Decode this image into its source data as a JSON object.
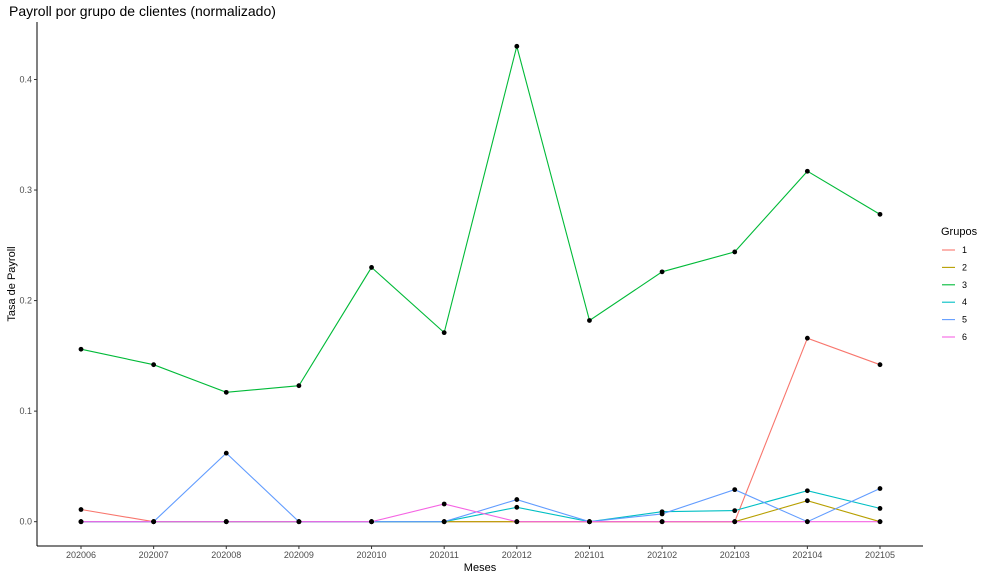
{
  "chart_data": {
    "type": "line",
    "title": "Payroll por grupo de clientes (normalizado)",
    "xlabel": "Meses",
    "ylabel": "Tasa de Payroll",
    "categories": [
      "202006",
      "202007",
      "202008",
      "202009",
      "202010",
      "202011",
      "202012",
      "202101",
      "202102",
      "202103",
      "202104",
      "202105"
    ],
    "yticks": [
      0.0,
      0.1,
      0.2,
      0.3,
      0.4
    ],
    "ytick_labels": [
      "0.0",
      "0.1",
      "0.2",
      "0.3",
      "0.4"
    ],
    "ylim": [
      -0.022,
      0.452
    ],
    "grid": false,
    "legend": {
      "title": "Grupos",
      "position": "right"
    },
    "series": [
      {
        "name": "1",
        "color": "#F8766D",
        "values": [
          0.011,
          0,
          0,
          0,
          0,
          0,
          0,
          0,
          0,
          0,
          0.166,
          0.142
        ]
      },
      {
        "name": "2",
        "color": "#B79F00",
        "values": [
          0,
          0,
          0,
          0,
          0,
          0,
          0,
          0,
          0,
          0,
          0.019,
          0
        ]
      },
      {
        "name": "3",
        "color": "#00BA38",
        "values": [
          0.156,
          0.142,
          0.117,
          0.123,
          0.23,
          0.171,
          0.43,
          0.182,
          0.226,
          0.244,
          0.317,
          0.278
        ]
      },
      {
        "name": "4",
        "color": "#00BFC4",
        "values": [
          0,
          0,
          0,
          0,
          0,
          0,
          0.013,
          0,
          0.009,
          0.01,
          0.028,
          0.012
        ]
      },
      {
        "name": "5",
        "color": "#619CFF",
        "values": [
          0,
          0,
          0.062,
          0,
          0,
          0,
          0.02,
          0,
          0.007,
          0.029,
          0,
          0.03
        ]
      },
      {
        "name": "6",
        "color": "#F564E3",
        "values": [
          0,
          0,
          0,
          0,
          0,
          0.016,
          0,
          0,
          0,
          0,
          0,
          0
        ]
      }
    ]
  }
}
